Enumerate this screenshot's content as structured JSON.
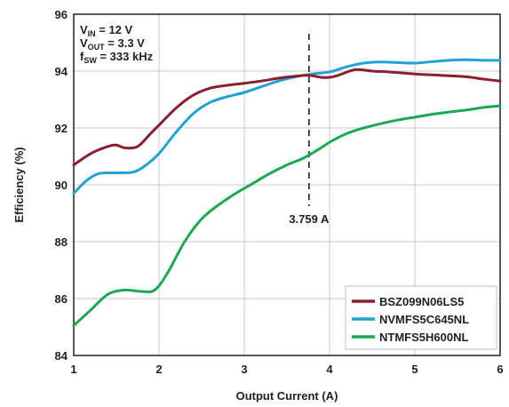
{
  "chart_data": {
    "type": "line",
    "title": "",
    "xlabel": "Output Current (A)",
    "ylabel": "Efficiency (%)",
    "xlim": [
      1,
      6
    ],
    "ylim": [
      84,
      96
    ],
    "x_ticks": [
      1,
      2,
      3,
      4,
      5,
      6
    ],
    "y_ticks": [
      84,
      86,
      88,
      90,
      92,
      94,
      96
    ],
    "x_tick_labels": [
      "1",
      "2",
      "3",
      "4",
      "5",
      "6"
    ],
    "y_tick_labels": [
      "84",
      "86",
      "88",
      "90",
      "92",
      "94",
      "96"
    ],
    "grid": true,
    "legend_position": "bottom-right",
    "conditions": [
      {
        "main": "V",
        "sub": "IN",
        "rest": " = 12 V"
      },
      {
        "main": "V",
        "sub": "OUT",
        "rest": " = 3.3 V"
      },
      {
        "main": "f",
        "sub": "SW",
        "rest": " = 333 kHz"
      }
    ],
    "annotation": {
      "text": "3.759 A",
      "x": 3.759
    },
    "series": [
      {
        "name": "BSZ099N06LS5",
        "color": "#8b1e32",
        "x": [
          1.0,
          1.2,
          1.4,
          1.5,
          1.6,
          1.75,
          1.9,
          2.0,
          2.2,
          2.4,
          2.6,
          2.8,
          3.0,
          3.2,
          3.4,
          3.6,
          3.76,
          3.9,
          4.0,
          4.1,
          4.3,
          4.5,
          4.7,
          5.0,
          5.3,
          5.6,
          5.8,
          6.0
        ],
        "y": [
          90.7,
          91.1,
          91.35,
          91.4,
          91.3,
          91.35,
          91.8,
          92.1,
          92.7,
          93.15,
          93.4,
          93.5,
          93.57,
          93.65,
          93.75,
          93.82,
          93.85,
          93.78,
          93.78,
          93.85,
          94.05,
          94.0,
          93.97,
          93.9,
          93.85,
          93.8,
          93.72,
          93.65
        ]
      },
      {
        "name": "NVMFS5C645NL",
        "color": "#1fa3d4",
        "x": [
          1.0,
          1.15,
          1.3,
          1.5,
          1.7,
          1.85,
          2.0,
          2.2,
          2.4,
          2.6,
          2.8,
          3.0,
          3.2,
          3.4,
          3.6,
          3.8,
          4.0,
          4.2,
          4.4,
          4.6,
          4.8,
          5.0,
          5.2,
          5.4,
          5.6,
          5.8,
          6.0
        ],
        "y": [
          89.7,
          90.15,
          90.4,
          90.42,
          90.45,
          90.7,
          91.1,
          91.85,
          92.5,
          92.9,
          93.1,
          93.25,
          93.45,
          93.65,
          93.8,
          93.9,
          93.97,
          94.15,
          94.28,
          94.32,
          94.3,
          94.28,
          94.33,
          94.38,
          94.4,
          94.38,
          94.38
        ]
      },
      {
        "name": "NTMFS5H600NL",
        "color": "#1aa853",
        "x": [
          1.0,
          1.2,
          1.4,
          1.6,
          1.8,
          1.95,
          2.1,
          2.3,
          2.5,
          2.7,
          2.9,
          3.1,
          3.3,
          3.5,
          3.7,
          3.9,
          4.0,
          4.2,
          4.4,
          4.6,
          4.8,
          5.0,
          5.2,
          5.4,
          5.6,
          5.8,
          6.0
        ],
        "y": [
          85.05,
          85.6,
          86.15,
          86.3,
          86.25,
          86.3,
          86.9,
          88.0,
          88.8,
          89.3,
          89.7,
          90.05,
          90.4,
          90.7,
          90.95,
          91.3,
          91.5,
          91.8,
          92.0,
          92.15,
          92.28,
          92.38,
          92.48,
          92.56,
          92.63,
          92.72,
          92.78
        ]
      }
    ]
  }
}
